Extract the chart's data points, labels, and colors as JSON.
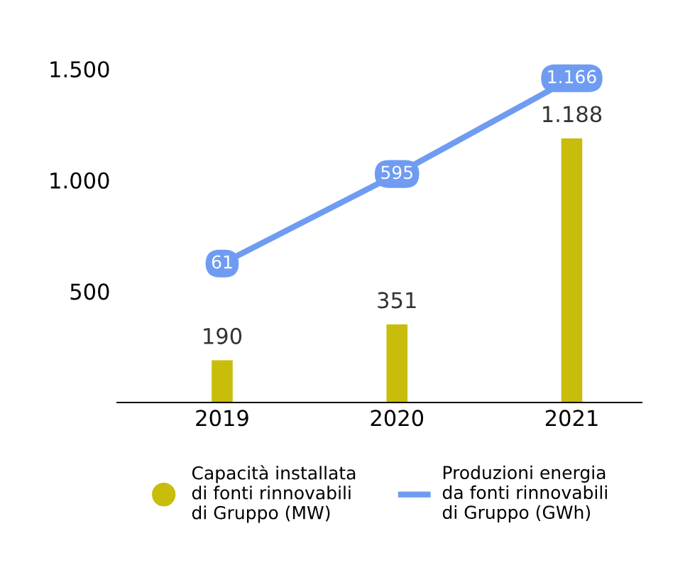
{
  "chart_data": {
    "type": "bar",
    "categories": [
      "2019",
      "2020",
      "2021"
    ],
    "series": [
      {
        "name": "Capacità installata\ndi fonti rinnovabili\ndi Gruppo (MW)",
        "color": "#c8bd0a",
        "values": [
          190,
          351,
          1188
        ],
        "value_labels": [
          "190",
          "351",
          "1.188"
        ]
      },
      {
        "name": "Produzioni energia\nda fonti rinnovabili\ndi Gruppo (GWh)",
        "type": "line",
        "axis": "y2",
        "color": "#6f9cf2",
        "marker": "circle",
        "values": [
          61,
          595,
          1166
        ],
        "value_labels": [
          "61",
          "595",
          "1.166"
        ]
      }
    ],
    "ylim": [
      0,
      1500
    ],
    "yticks": [
      {
        "value": 500,
        "label": "500"
      },
      {
        "value": 1000,
        "label": "1.000"
      },
      {
        "value": 1500,
        "label": "1.500"
      }
    ],
    "grid": false,
    "legend": "bottom",
    "line_style": "solid"
  }
}
